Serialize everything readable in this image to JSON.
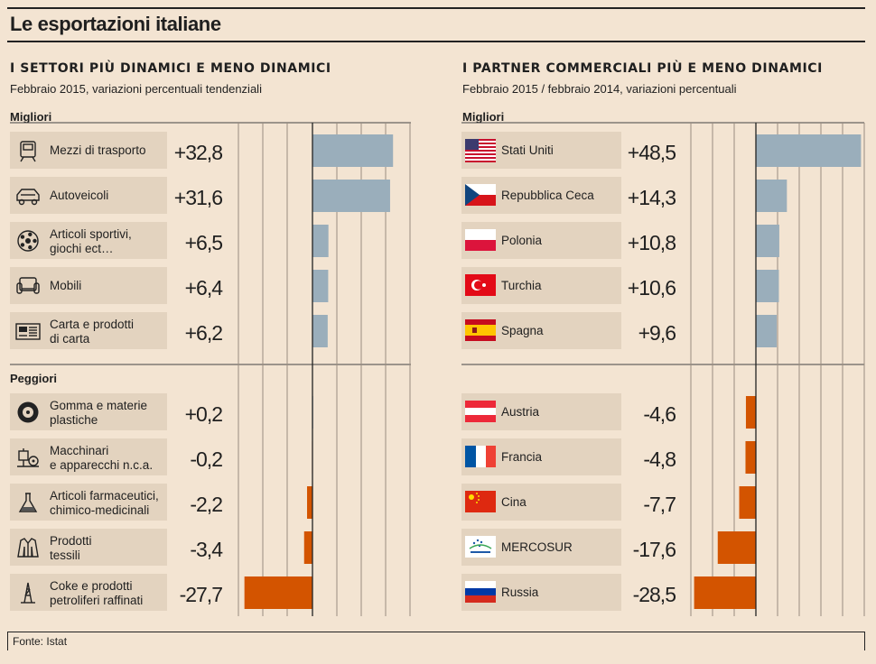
{
  "title": "Le esportazioni italiane",
  "source": "Fonte: Istat",
  "colors": {
    "positive": "#9aaebb",
    "negative": "#d35400",
    "label_bg": "#e3d3bf"
  },
  "chart_data": [
    {
      "type": "bar",
      "title": "I SETTORI PIÙ DINAMICI E MENO DINAMICI",
      "subtitle": "Febbraio 2015, variazioni percentuali tendenziali",
      "groups": [
        {
          "label": "Migliori",
          "items": [
            {
              "name": "Mezzi di trasporto",
              "value": 32.8,
              "display": "+32,8",
              "icon": "train-icon"
            },
            {
              "name": "Autoveicoli",
              "value": 31.6,
              "display": "+31,6",
              "icon": "car-icon"
            },
            {
              "name": "Articoli sportivi,\ngiochi ect…",
              "value": 6.5,
              "display": "+6,5",
              "icon": "ball-icon"
            },
            {
              "name": "Mobili",
              "value": 6.4,
              "display": "+6,4",
              "icon": "armchair-icon"
            },
            {
              "name": "Carta e prodotti\ndi carta",
              "value": 6.2,
              "display": "+6,2",
              "icon": "newspaper-icon"
            }
          ]
        },
        {
          "label": "Peggiori",
          "items": [
            {
              "name": "Gomma e materie\nplastiche",
              "value": 0.2,
              "display": "+0,2",
              "icon": "tire-icon"
            },
            {
              "name": "Macchinari\ne apparecchi n.c.a.",
              "value": -0.2,
              "display": "-0,2",
              "icon": "machinery-icon"
            },
            {
              "name": "Articoli farmaceutici,\nchimico-medicinali",
              "value": -2.2,
              "display": "-2,2",
              "icon": "flask-icon"
            },
            {
              "name": "Prodotti\ntessili",
              "value": -3.4,
              "display": "-3,4",
              "icon": "jacket-icon"
            },
            {
              "name": "Coke e prodotti\npetroliferi raffinati",
              "value": -27.7,
              "display": "-27,7",
              "icon": "oil-derrick-icon"
            }
          ]
        }
      ]
    },
    {
      "type": "bar",
      "title": "I PARTNER COMMERCIALI PIÙ E MENO DINAMICI",
      "subtitle": "Febbraio 2015 / febbraio 2014, variazioni percentuali",
      "groups": [
        {
          "label": "Migliori",
          "items": [
            {
              "name": "Stati Uniti",
              "value": 48.5,
              "display": "+48,5",
              "icon": "flag-usa-icon"
            },
            {
              "name": "Repubblica Ceca",
              "value": 14.3,
              "display": "+14,3",
              "icon": "flag-czech-icon"
            },
            {
              "name": "Polonia",
              "value": 10.8,
              "display": "+10,8",
              "icon": "flag-poland-icon"
            },
            {
              "name": "Turchia",
              "value": 10.6,
              "display": "+10,6",
              "icon": "flag-turkey-icon"
            },
            {
              "name": "Spagna",
              "value": 9.6,
              "display": "+9,6",
              "icon": "flag-spain-icon"
            }
          ]
        },
        {
          "label": "",
          "items": [
            {
              "name": "Austria",
              "value": -4.6,
              "display": "-4,6",
              "icon": "flag-austria-icon"
            },
            {
              "name": "Francia",
              "value": -4.8,
              "display": "-4,8",
              "icon": "flag-france-icon"
            },
            {
              "name": "Cina",
              "value": -7.7,
              "display": "-7,7",
              "icon": "flag-china-icon"
            },
            {
              "name": "MERCOSUR",
              "value": -17.6,
              "display": "-17,6",
              "icon": "flag-mercosur-icon"
            },
            {
              "name": "Russia",
              "value": -28.5,
              "display": "-28,5",
              "icon": "flag-russia-icon"
            }
          ]
        }
      ]
    }
  ]
}
